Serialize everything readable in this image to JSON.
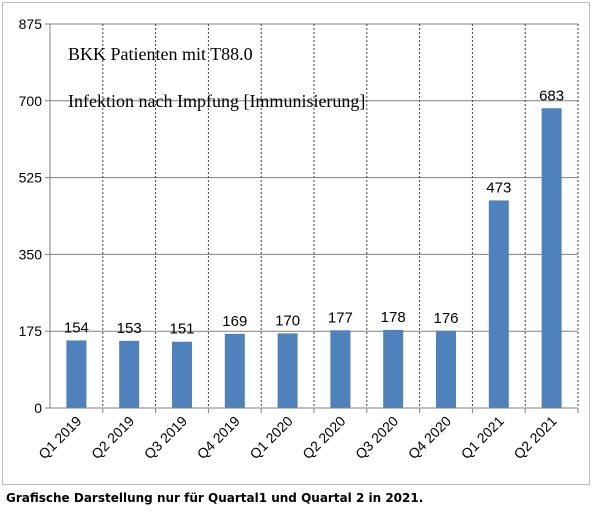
{
  "chart_data": {
    "type": "bar",
    "title_lines": [
      "BKK Patienten mit T88.0",
      "Infektion nach Impfung [Immunisierung]"
    ],
    "categories": [
      "Q1 2019",
      "Q2 2019",
      "Q3 2019",
      "Q4 2019",
      "Q1 2020",
      "Q2 2020",
      "Q3 2020",
      "Q4 2020",
      "Q1 2021",
      "Q2 2021"
    ],
    "values": [
      154,
      153,
      151,
      169,
      170,
      177,
      178,
      176,
      473,
      683
    ],
    "ylim": [
      0,
      875
    ],
    "yticks": [
      0,
      175,
      350,
      525,
      700,
      875
    ],
    "bar_color": "#4f81bd",
    "grid": true,
    "data_labels": true
  },
  "caption": "Grafische Darstellung nur für Quartal1 und Quartal 2 in 2021."
}
